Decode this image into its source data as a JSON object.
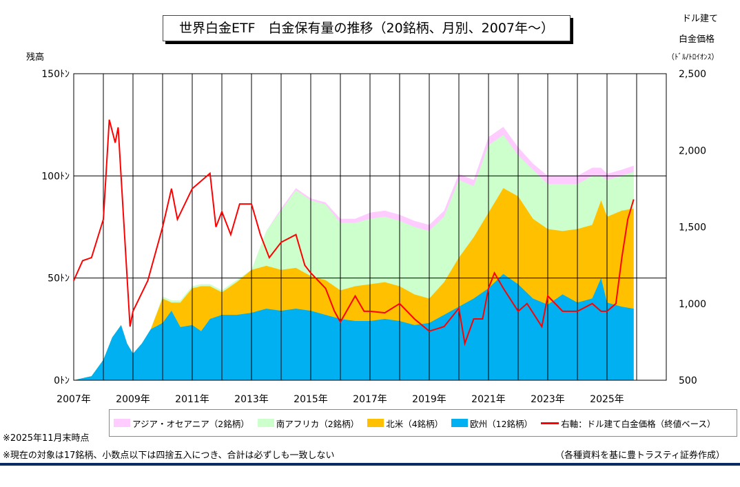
{
  "title": "世界白金ETF　白金保有量の推移（20銘柄、月別、2007年～）",
  "left_axis_label": "残高",
  "right_axis_label": [
    "ドル建て",
    "白金価格",
    "（ﾄﾞﾙ/ﾄﾛｲｵﾝｽ）"
  ],
  "notes": {
    "asof": "※2025年11月末時点",
    "disclaimer": "※現在の対象は17銘柄、小数点以下は四捨五入につき、合計は必ずしも一致しない",
    "source": "（各種資料を基に豊トラスティ証券作成）"
  },
  "chart_data": {
    "type": "area",
    "stacked": true,
    "xlim": [
      2007,
      2027
    ],
    "ylim": [
      0,
      150
    ],
    "y2lim": [
      500,
      2500
    ],
    "grid": true,
    "legend_placement": "bottom",
    "x_tick_labels": [
      "2007年",
      "2009年",
      "2011年",
      "2013年",
      "2015年",
      "2017年",
      "2019年",
      "2021年",
      "2023年",
      "2025年"
    ],
    "y_tick_labels": [
      "0ﾄﾝ",
      "50ﾄﾝ",
      "100ﾄﾝ",
      "150ﾄﾝ"
    ],
    "y2_tick_labels": [
      "500",
      "1,000",
      "1,500",
      "2,000",
      "2,500"
    ],
    "x": [
      2007.0,
      2007.3,
      2007.6,
      2008.0,
      2008.3,
      2008.6,
      2008.8,
      2009.0,
      2009.3,
      2009.6,
      2010.0,
      2010.3,
      2010.6,
      2011.0,
      2011.3,
      2011.6,
      2012.0,
      2012.5,
      2013.0,
      2013.5,
      2014.0,
      2014.5,
      2015.0,
      2015.5,
      2016.0,
      2016.5,
      2017.0,
      2017.5,
      2018.0,
      2018.5,
      2019.0,
      2019.5,
      2020.0,
      2020.5,
      2021.0,
      2021.5,
      2022.0,
      2022.5,
      2023.0,
      2023.5,
      2024.0,
      2024.5,
      2024.8,
      2025.0,
      2025.5,
      2025.9
    ],
    "series": [
      {
        "name": "欧州（12銘柄）",
        "color": "#00b0f0",
        "values": [
          0,
          1,
          2,
          10,
          21,
          27,
          18,
          13,
          18,
          25,
          28,
          34,
          26,
          27,
          24,
          30,
          32,
          32,
          33,
          35,
          34,
          35,
          34,
          32,
          30,
          29,
          29,
          30,
          29,
          27,
          28,
          32,
          36,
          40,
          45,
          52,
          47,
          40,
          37,
          42,
          38,
          40,
          50,
          38,
          36,
          35
        ]
      },
      {
        "name": "北米（4銘柄）",
        "color": "#ffc000",
        "values": [
          0,
          0,
          0,
          0,
          0,
          0,
          0,
          0,
          0,
          0,
          12,
          4,
          12,
          18,
          22,
          16,
          11,
          16,
          21,
          21,
          20,
          20,
          17,
          17,
          14,
          17,
          18,
          18,
          17,
          15,
          12,
          16,
          24,
          30,
          37,
          42,
          43,
          39,
          37,
          31,
          36,
          36,
          38,
          42,
          47,
          49
        ]
      },
      {
        "name": "南アフリカ（2銘柄）",
        "color": "#ccffcc",
        "values": [
          0,
          0,
          0,
          0,
          0,
          0,
          0,
          0,
          0,
          0,
          1,
          1,
          1,
          1,
          1,
          1,
          1,
          1,
          0,
          17,
          29,
          38,
          37,
          37,
          33,
          31,
          32,
          32,
          32,
          33,
          33,
          32,
          38,
          25,
          33,
          26,
          20,
          24,
          22,
          23,
          22,
          24,
          12,
          18,
          17,
          18
        ]
      },
      {
        "name": "アジア・オセアニア（2銘柄）",
        "color": "#ffccff",
        "values": [
          0,
          0,
          0,
          0,
          0,
          0,
          0,
          0,
          0,
          0,
          0,
          0,
          0,
          0,
          0,
          0,
          0,
          0,
          0,
          0,
          1,
          1,
          1,
          1,
          2,
          2,
          3,
          3,
          3,
          3,
          3,
          3,
          3,
          3,
          4,
          4,
          4,
          3,
          4,
          4,
          4,
          4,
          4,
          3,
          3,
          3
        ]
      }
    ],
    "line_series": {
      "name": "右軸：ドル建て白金価格（終値ベース）",
      "color": "#ff0000",
      "axis": "right",
      "x": [
        2007.0,
        2007.3,
        2007.6,
        2008.0,
        2008.2,
        2008.4,
        2008.5,
        2008.7,
        2008.9,
        2009.0,
        2009.5,
        2010.0,
        2010.3,
        2010.5,
        2011.0,
        2011.3,
        2011.6,
        2011.8,
        2012.0,
        2012.3,
        2012.6,
        2013.0,
        2013.3,
        2013.6,
        2014.0,
        2014.5,
        2014.8,
        2015.0,
        2015.5,
        2015.8,
        2016.0,
        2016.5,
        2016.8,
        2017.0,
        2017.5,
        2018.0,
        2018.5,
        2019.0,
        2019.5,
        2020.0,
        2020.2,
        2020.5,
        2020.8,
        2021.0,
        2021.2,
        2021.5,
        2022.0,
        2022.3,
        2022.8,
        2023.0,
        2023.5,
        2024.0,
        2024.5,
        2024.8,
        2025.0,
        2025.3,
        2025.5,
        2025.7,
        2025.9
      ],
      "values": [
        1150,
        1280,
        1300,
        1550,
        2200,
        2050,
        2150,
        1500,
        850,
        950,
        1150,
        1500,
        1750,
        1550,
        1750,
        1800,
        1850,
        1500,
        1600,
        1450,
        1650,
        1650,
        1450,
        1300,
        1400,
        1450,
        1250,
        1200,
        1100,
        950,
        880,
        1050,
        950,
        950,
        940,
        1000,
        900,
        820,
        850,
        970,
        740,
        900,
        900,
        1100,
        1200,
        1100,
        950,
        1000,
        850,
        1050,
        950,
        950,
        1000,
        950,
        950,
        1000,
        1300,
        1550,
        1680
      ]
    }
  }
}
